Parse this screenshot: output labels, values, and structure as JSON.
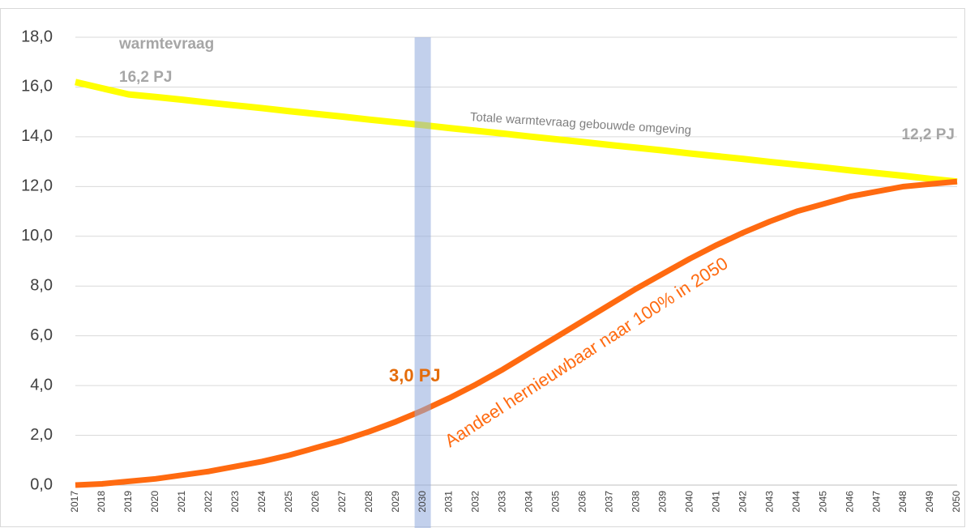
{
  "chart_data": {
    "type": "line",
    "categories": [
      "2017",
      "2018",
      "2019",
      "2020",
      "2021",
      "2022",
      "2023",
      "2024",
      "2025",
      "2026",
      "2027",
      "2028",
      "2029",
      "2030",
      "2031",
      "2032",
      "2033",
      "2034",
      "2035",
      "2036",
      "2037",
      "2038",
      "2039",
      "2040",
      "2041",
      "2042",
      "2043",
      "2044",
      "2045",
      "2046",
      "2047",
      "2048",
      "2049",
      "2050"
    ],
    "series": [
      {
        "color": "#ffff00",
        "values": [
          16.2,
          15.95,
          15.7,
          15.6,
          15.49,
          15.37,
          15.26,
          15.15,
          15.03,
          14.92,
          14.81,
          14.69,
          14.58,
          14.47,
          14.35,
          14.24,
          14.13,
          14.01,
          13.9,
          13.79,
          13.67,
          13.56,
          13.45,
          13.33,
          13.22,
          13.11,
          12.99,
          12.88,
          12.77,
          12.65,
          12.54,
          12.43,
          12.31,
          12.2
        ]
      },
      {
        "color": "#ff6a10",
        "values": [
          0.0,
          0.05,
          0.15,
          0.25,
          0.4,
          0.55,
          0.75,
          0.95,
          1.2,
          1.5,
          1.8,
          2.15,
          2.55,
          3.0,
          3.5,
          4.05,
          4.65,
          5.3,
          5.95,
          6.6,
          7.25,
          7.9,
          8.5,
          9.1,
          9.65,
          10.15,
          10.6,
          11.0,
          11.3,
          11.6,
          11.8,
          12.0,
          12.1,
          12.2
        ]
      }
    ],
    "ylim": [
      0,
      18
    ],
    "yticks": [
      {
        "value": 0,
        "label": "0,0"
      },
      {
        "value": 2,
        "label": "2,0"
      },
      {
        "value": 4,
        "label": "4,0"
      },
      {
        "value": 6,
        "label": "6,0"
      },
      {
        "value": 8,
        "label": "8,0"
      },
      {
        "value": 10,
        "label": "10,0"
      },
      {
        "value": 12,
        "label": "12,0"
      },
      {
        "value": 14,
        "label": "14,0"
      },
      {
        "value": 16,
        "label": "16,0"
      },
      {
        "value": 18,
        "label": "18,0"
      }
    ],
    "grid": true,
    "highlight": "2030",
    "highlight_color": "#8faadc",
    "annotations": [
      "warmtevraag",
      "16,2 PJ",
      "Totale warmtevraag gebouwde omgeving",
      "12,2 PJ",
      "3,0 PJ",
      "Aandeel hernieuwbaar naar 100% in 2050"
    ]
  }
}
